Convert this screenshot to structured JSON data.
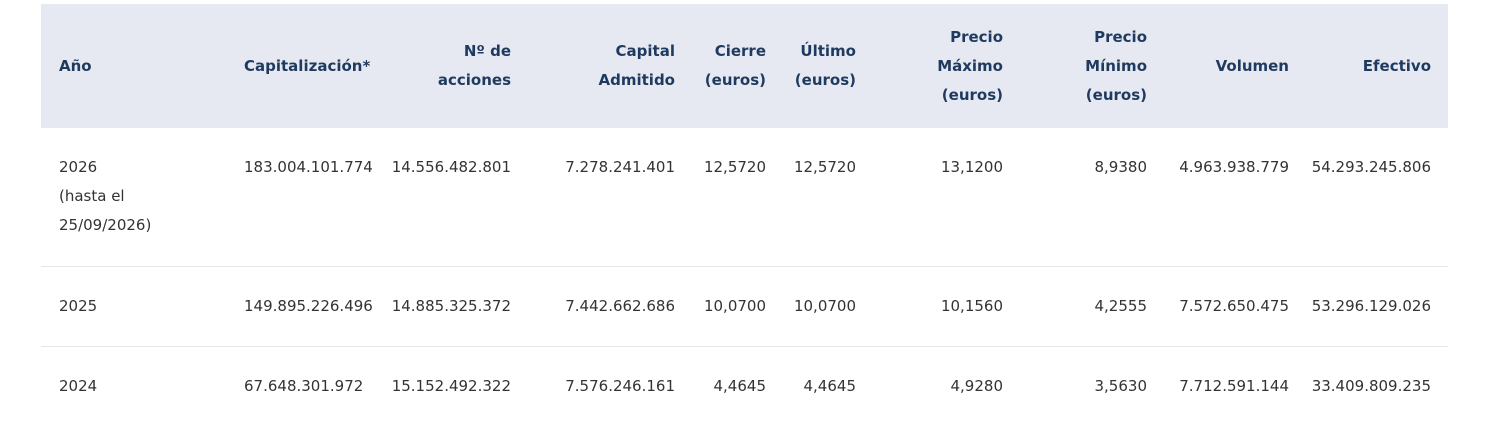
{
  "table": {
    "headers": [
      [
        "Año"
      ],
      [
        "Capitalización*"
      ],
      [
        "Nº de",
        "acciones"
      ],
      [
        "Capital",
        "Admitido"
      ],
      [
        "Cierre",
        "(euros)"
      ],
      [
        "Último",
        "(euros)"
      ],
      [
        "Precio",
        "Máximo",
        "(euros)"
      ],
      [
        "Precio",
        "Mínimo",
        "(euros)"
      ],
      [
        "Volumen"
      ],
      [
        "Efectivo"
      ]
    ],
    "rows": [
      [
        [
          "2026",
          "(hasta el",
          "25/09/2026)"
        ],
        "183.004.101.774",
        "14.556.482.801",
        "7.278.241.401",
        "12,5720",
        "12,5720",
        "13,1200",
        "8,9380",
        "4.963.938.779",
        "54.293.245.806"
      ],
      [
        [
          "2025"
        ],
        "149.895.226.496",
        "14.885.325.372",
        "7.442.662.686",
        "10,0700",
        "10,0700",
        "10,1560",
        "4,2555",
        "7.572.650.475",
        "53.296.129.026"
      ],
      [
        [
          "2024"
        ],
        "67.648.301.972",
        "15.152.492.322",
        "7.576.246.161",
        "4,4645",
        "4,4645",
        "4,9280",
        "3,5630",
        "7.712.591.144",
        "33.409.809.235"
      ]
    ]
  }
}
